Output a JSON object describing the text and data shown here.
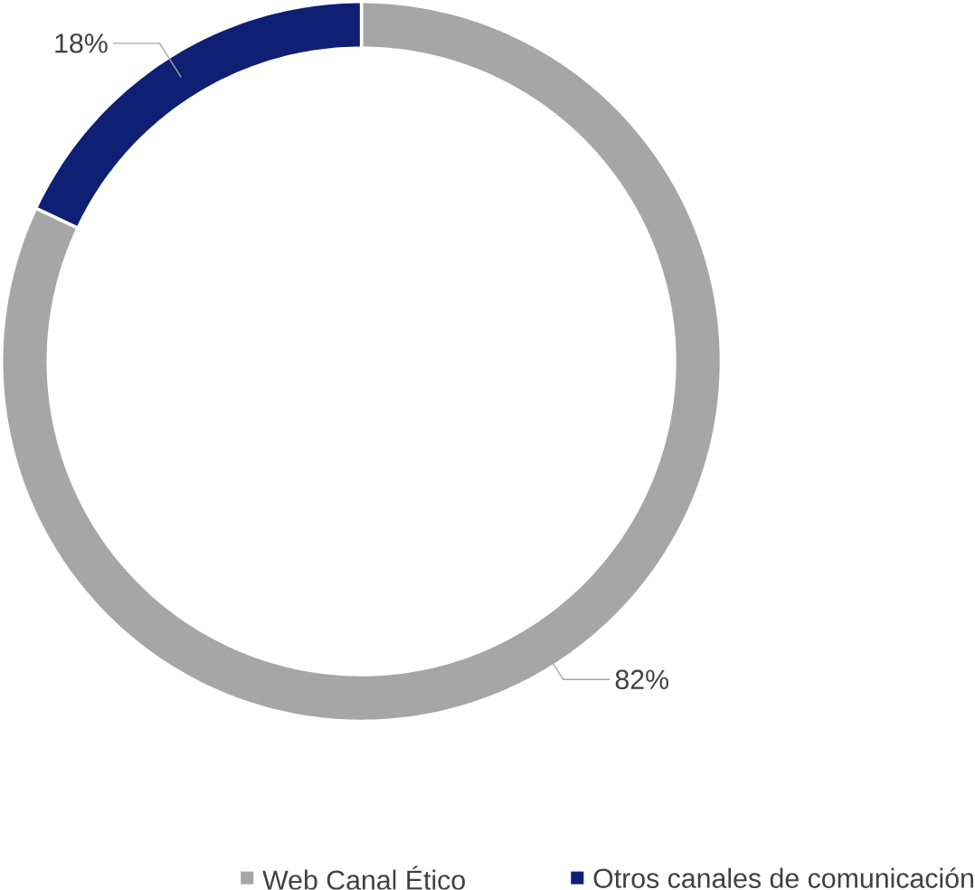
{
  "chart_data": {
    "type": "donut",
    "categories": [
      "Web Canal Ético",
      "Otros canales de comunicación"
    ],
    "values": [
      82,
      18
    ],
    "value_labels": [
      "82%",
      "18%"
    ],
    "colors": [
      "#a6a6a6",
      "#0f1f73"
    ],
    "legend": "bottom"
  }
}
